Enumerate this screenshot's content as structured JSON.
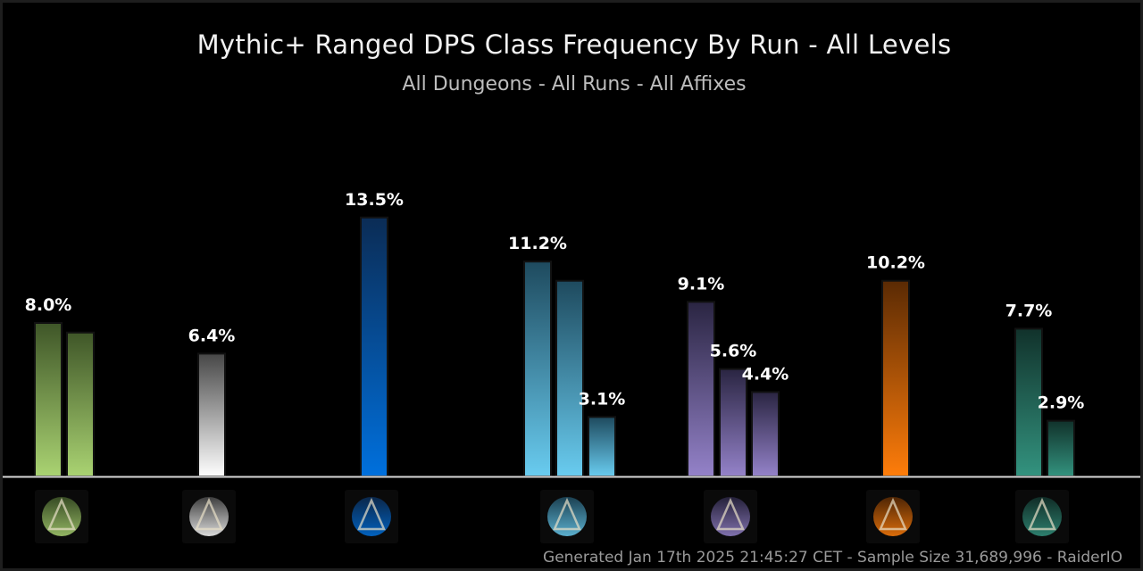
{
  "header": {
    "title": "Mythic+ Ranged DPS Class Frequency By Run - All Levels",
    "subtitle": "All Dungeons - All Runs - All Affixes"
  },
  "footer": {
    "text": "Generated Jan 17th 2025 21:45:27 CET - Sample Size 31,689,996 - RaiderIO"
  },
  "chart_data": {
    "type": "bar",
    "title": "Mythic+ Ranged DPS Class Frequency By Run - All Levels",
    "subtitle": "All Dungeons - All Runs - All Affixes",
    "ylim": [
      0,
      16
    ],
    "unit": "%",
    "grid": false,
    "legend": "none",
    "groups": [
      {
        "icon": "hunter-bow-icon",
        "colors": [
          "#aad372",
          "#3f5628"
        ],
        "bars": [
          {
            "value": 8.0,
            "label": "8.0%"
          },
          {
            "value": 7.5,
            "label": ""
          }
        ]
      },
      {
        "icon": "priest-shield-icon",
        "colors": [
          "#ffffff",
          "#474747"
        ],
        "bars": [
          {
            "value": 6.4,
            "label": "6.4%"
          }
        ]
      },
      {
        "icon": "shaman-totem-icon",
        "colors": [
          "#0070dd",
          "#0b2c55"
        ],
        "bars": [
          {
            "value": 13.5,
            "label": "13.5%"
          }
        ]
      },
      {
        "icon": "mage-staff-icon",
        "colors": [
          "#69ccf0",
          "#1e4a5e"
        ],
        "bars": [
          {
            "value": 11.2,
            "label": "11.2%"
          },
          {
            "value": 10.2,
            "label": ""
          },
          {
            "value": 3.1,
            "label": "3.1%"
          }
        ]
      },
      {
        "icon": "warlock-tentacle-icon",
        "colors": [
          "#9482c9",
          "#2a2542"
        ],
        "bars": [
          {
            "value": 9.1,
            "label": "9.1%"
          },
          {
            "value": 5.6,
            "label": "5.6%"
          },
          {
            "value": 4.4,
            "label": "4.4%"
          }
        ]
      },
      {
        "icon": "druid-claw-icon",
        "colors": [
          "#ff7d0a",
          "#5a2a04"
        ],
        "bars": [
          {
            "value": 10.2,
            "label": "10.2%"
          }
        ]
      },
      {
        "icon": "evoker-dragon-icon",
        "colors": [
          "#33937f",
          "#11322b"
        ],
        "bars": [
          {
            "value": 7.7,
            "label": "7.7%"
          },
          {
            "value": 2.9,
            "label": "2.9%"
          }
        ]
      }
    ]
  }
}
